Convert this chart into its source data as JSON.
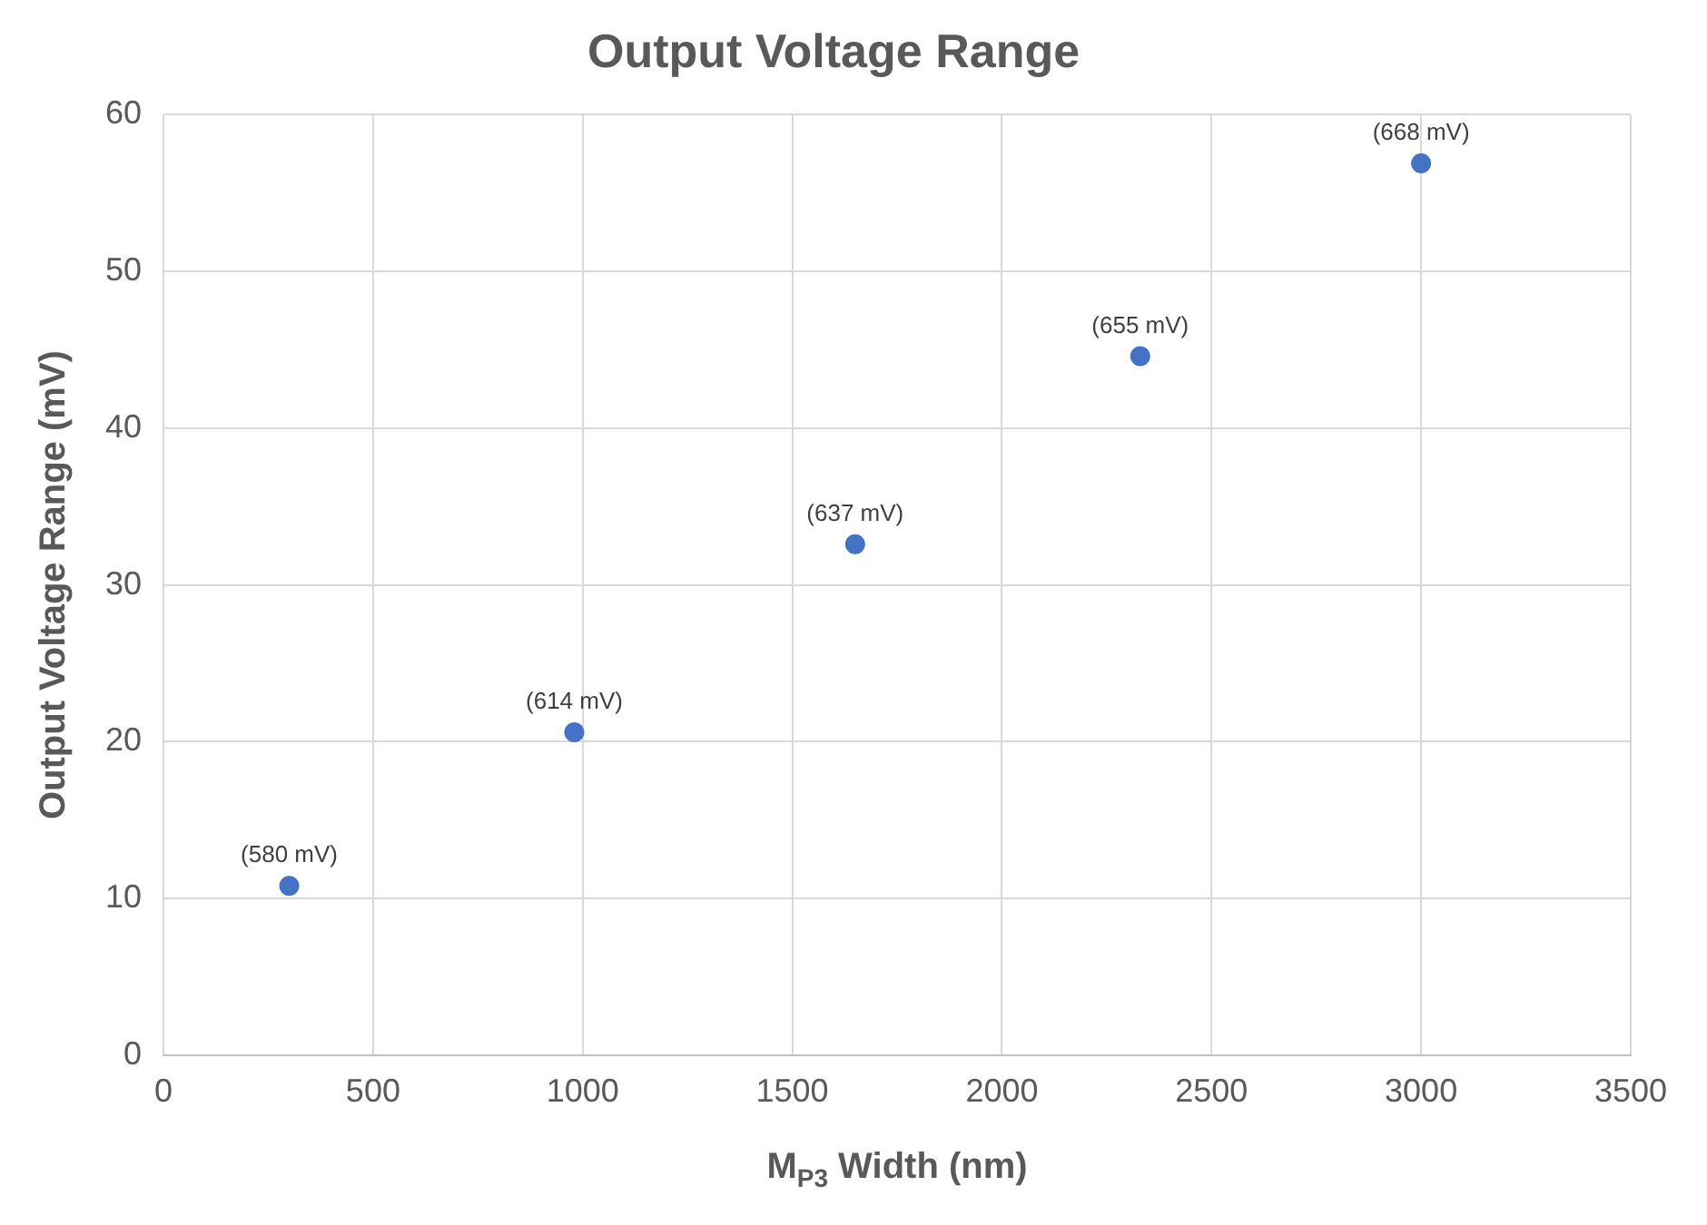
{
  "chart_data": {
    "type": "scatter",
    "title": "Output Voltage Range",
    "xlabel": "M$_{P3}$ Width (nm)",
    "ylabel": "Output Voltage Range (mV)",
    "series": [
      {
        "color": "#4472c4",
        "x": [
          300,
          980,
          1650,
          2330,
          3000
        ],
        "values": [
          10.8,
          20.6,
          32.6,
          44.6,
          56.9
        ]
      }
    ],
    "annotations": [
      {
        "text": "(580 mV)",
        "x": 300,
        "y": 10.8
      },
      {
        "text": "(614 mV)",
        "x": 980,
        "y": 20.6
      },
      {
        "text": "(637 mV)",
        "x": 1650,
        "y": 32.6
      },
      {
        "text": "(655 mV)",
        "x": 2330,
        "y": 44.6
      },
      {
        "text": "(668 mV)",
        "x": 3000,
        "y": 56.9
      }
    ],
    "xlim": [
      0,
      3500
    ],
    "xticks": [
      0,
      500,
      1000,
      1500,
      2000,
      2500,
      3000,
      3500
    ],
    "ylim": [
      0,
      60
    ],
    "yticks": [
      0,
      10,
      20,
      30,
      40,
      50,
      60
    ],
    "grid": true,
    "legend": false,
    "marker": "circle"
  }
}
